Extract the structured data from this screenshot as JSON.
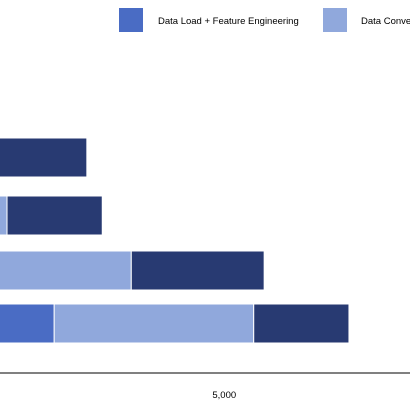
{
  "chart_data": {
    "type": "bar",
    "orientation": "horizontal",
    "stacked": true,
    "categories": [
      "",
      "",
      "",
      ""
    ],
    "series": [
      {
        "name": "Data Load + Feature Engineering",
        "values": [
          0,
          0,
          0,
          1250
        ],
        "color": "#4a6cc4"
      },
      {
        "name": "Data Conve",
        "values": [
          0,
          210,
          2950,
          4400
        ],
        "color": "#90a8dc"
      },
      {
        "name": "",
        "values": [
          1970,
          2100,
          2930,
          2100
        ],
        "color": "#283a72"
      }
    ],
    "xlim": [
      0,
      7600
    ],
    "xticks": [
      5000
    ],
    "xtick_labels": [
      "5,000"
    ],
    "xlabel": "",
    "ylabel": "",
    "title": "",
    "grid": false,
    "legend_position": "top"
  }
}
